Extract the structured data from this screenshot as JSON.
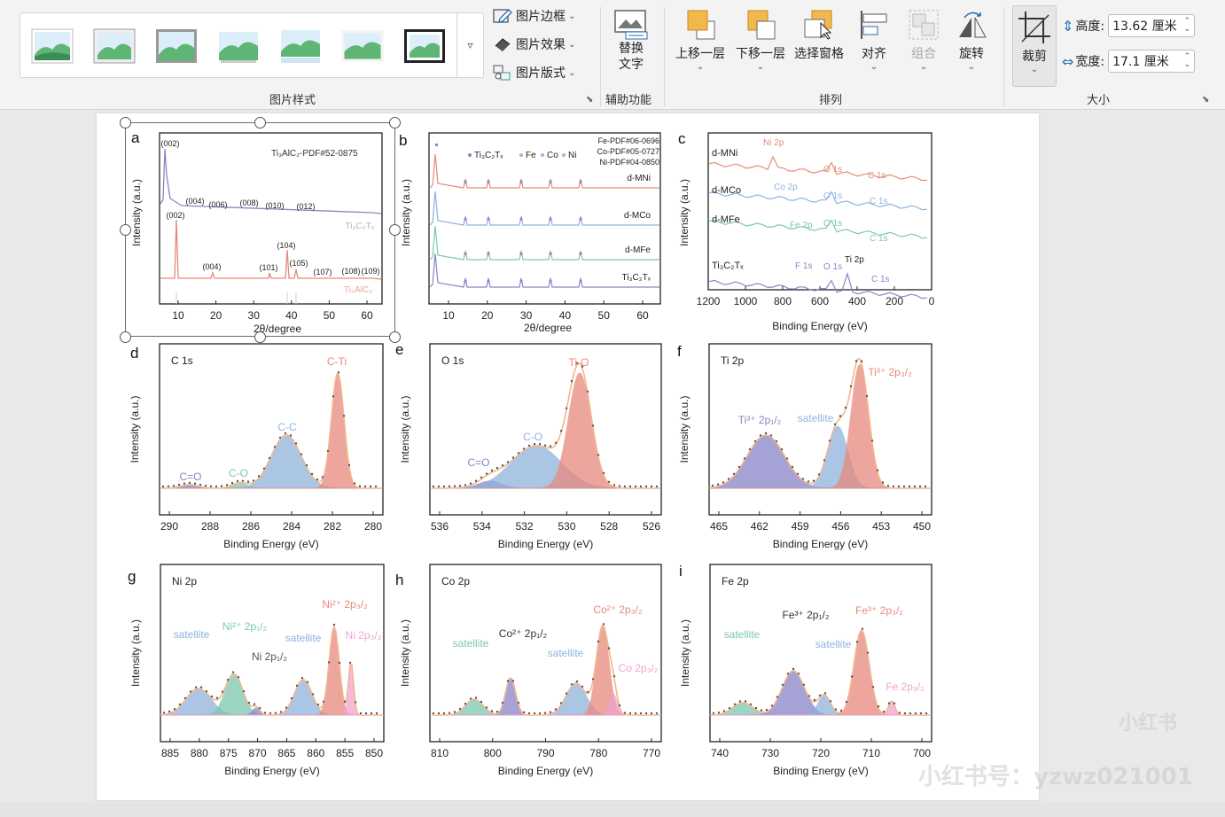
{
  "ribbon": {
    "gallery_more_glyph": "▿",
    "border_label": "图片边框",
    "effects_label": "图片效果",
    "layout_label": "图片版式",
    "styles_group_label": "图片样式",
    "alt_text_label_line1": "替换",
    "alt_text_label_line2": "文字",
    "accessibility_group_label": "辅助功能",
    "bring_forward_label": "上移一层",
    "send_backward_label": "下移一层",
    "selection_pane_label": "选择窗格",
    "align_label": "对齐",
    "group_label": "组合",
    "rotate_label": "旋转",
    "arrange_group_label": "排列",
    "crop_label": "裁剪",
    "height_label": "高度:",
    "height_value": "13.62 厘米",
    "width_label": "宽度:",
    "width_value": "17.1 厘米",
    "size_group_label": "大小"
  },
  "colors": {
    "accent_orange": "#f2b84b",
    "ribbon_bg": "#f3f3f3",
    "tick_salmon": "#e68a7a",
    "tick_lavender": "#8b86c5",
    "peak_red": "#e8897d",
    "peak_blue": "#8fb3dd",
    "peak_green": "#7dc7b0",
    "peak_purple": "#8884c8",
    "peak_pink": "#f0a3d0",
    "envelope_orange": "#f3b68b"
  },
  "figure": {
    "a": {
      "letter": "a",
      "ylabel": "Intensity (a.u.)",
      "xlabel": "2θ/degree",
      "ref_label": "Ti₃AlC₂-PDF#52-0875",
      "series_top": "Ti₃C₂Tₓ",
      "series_bottom": "Ti₃AlC₂",
      "top_peaks": [
        "(002)",
        "(004)",
        "(006)",
        "(008)",
        "(010)",
        "(012)"
      ],
      "bottom_peaks": [
        "(002)",
        "(004)",
        "(101)",
        "(104)",
        "(105)",
        "(107)",
        "(108)",
        "(109)"
      ],
      "xticks": [
        "10",
        "20",
        "30",
        "40",
        "50",
        "60"
      ]
    },
    "b": {
      "letter": "b",
      "ylabel": "Intensity (a.u.)",
      "xlabel": "2θ/degree",
      "legend": [
        "Ti₃C₂Tₓ",
        "Fe",
        "Co",
        "Ni"
      ],
      "pdf_lines": [
        "Fe-PDF#06-0696",
        "Co-PDF#05-0727",
        "Ni-PDF#04-0850"
      ],
      "series": [
        "d-MNi",
        "d-MCo",
        "d-MFe",
        "Ti₃C₂Tₓ"
      ],
      "xticks": [
        "10",
        "20",
        "30",
        "40",
        "50",
        "60"
      ]
    },
    "c": {
      "letter": "c",
      "ylabel": "Intensity (a.u.)",
      "xlabel": "Binding Energy (eV)",
      "series": [
        "d-MNi",
        "d-MCo",
        "d-MFe",
        "Ti₃C₂Tₓ"
      ],
      "peaks": {
        "ni2p": "Ni 2p",
        "co2p": "Co 2p",
        "fe2p": "Fe 2p",
        "f1s": "F 1s",
        "o1s": "O 1s",
        "c1s": "C 1s",
        "ti2p": "Ti 2p"
      },
      "xticks": [
        "1200",
        "1000",
        "800",
        "600",
        "400",
        "200",
        "0"
      ]
    },
    "d": {
      "letter": "d",
      "title": "C 1s",
      "ylabel": "Intensity (a.u.)",
      "xlabel": "Binding Energy (eV)",
      "peaks": [
        "C=O",
        "C-O",
        "C-C",
        "C-Ti"
      ],
      "xticks": [
        "290",
        "288",
        "286",
        "284",
        "282",
        "280"
      ]
    },
    "e": {
      "letter": "e",
      "title": "O 1s",
      "ylabel": "Intensity (a.u.)",
      "xlabel": "Binding Energy (eV)",
      "peaks": [
        "C=O",
        "C-O",
        "Ti-O"
      ],
      "xticks": [
        "536",
        "534",
        "532",
        "530",
        "528",
        "526"
      ]
    },
    "f": {
      "letter": "f",
      "title": "Ti 2p",
      "ylabel": "Intensity (a.u.)",
      "xlabel": "Binding Energy (eV)",
      "peaks": [
        "Ti³⁺ 2p₁/₂",
        "satellite",
        "Ti³⁺ 2p₃/₂"
      ],
      "xticks": [
        "465",
        "462",
        "459",
        "456",
        "453",
        "450"
      ]
    },
    "g": {
      "letter": "g",
      "title": "Ni 2p",
      "ylabel": "Intensity (a.u.)",
      "xlabel": "Binding Energy (eV)",
      "peaks": [
        "satellite",
        "Ni²⁺ 2p₁/₂",
        "Ni 2p₁/₂",
        "satellite",
        "Ni²⁺ 2p₃/₂",
        "Ni 2p₃/₂"
      ],
      "xticks": [
        "885",
        "880",
        "875",
        "870",
        "865",
        "860",
        "855",
        "850"
      ]
    },
    "h": {
      "letter": "h",
      "title": "Co 2p",
      "ylabel": "Intensity (a.u.)",
      "xlabel": "Binding Energy (eV)",
      "peaks": [
        "satellite",
        "Co²⁺ 2p₁/₂",
        "satellite",
        "Co²⁺ 2p₃/₂",
        "Co 2p₃/₂"
      ],
      "xticks": [
        "810",
        "800",
        "790",
        "780",
        "770"
      ]
    },
    "i": {
      "letter": "i",
      "title": "Fe 2p",
      "ylabel": "Intensity (a.u.)",
      "xlabel": "Binding Energy (eV)",
      "peaks": [
        "satellite",
        "Fe³⁺ 2p₁/₂",
        "satellite",
        "Fe³⁺ 2p₃/₂",
        "Fe 2p₃/₂"
      ],
      "xticks": [
        "740",
        "730",
        "720",
        "710",
        "700"
      ]
    }
  },
  "watermark": {
    "logo": "小红书",
    "account": "小红书号：yzwz021001"
  }
}
